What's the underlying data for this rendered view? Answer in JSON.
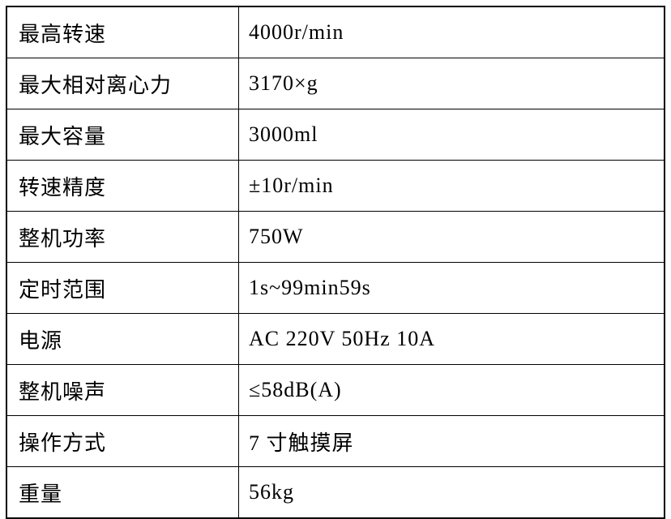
{
  "table": {
    "title": "centrifuge-specifications",
    "colors": {
      "border": "#000000",
      "text": "#000000",
      "background": "#ffffff"
    },
    "rows": [
      {
        "label": "最高转速",
        "value": "4000r/min"
      },
      {
        "label": "最大相对离心力",
        "value": "3170×g"
      },
      {
        "label": "最大容量",
        "value": "3000ml"
      },
      {
        "label": "转速精度",
        "value": "±10r/min"
      },
      {
        "label": "整机功率",
        "value": "750W"
      },
      {
        "label": "定时范围",
        "value": "1s~99min59s"
      },
      {
        "label": "电源",
        "value": "AC 220V 50Hz 10A"
      },
      {
        "label": "整机噪声",
        "value": "≤58dB(A)"
      },
      {
        "label": "操作方式",
        "value": "7 寸触摸屏"
      },
      {
        "label": "重量",
        "value": "56kg"
      }
    ]
  }
}
